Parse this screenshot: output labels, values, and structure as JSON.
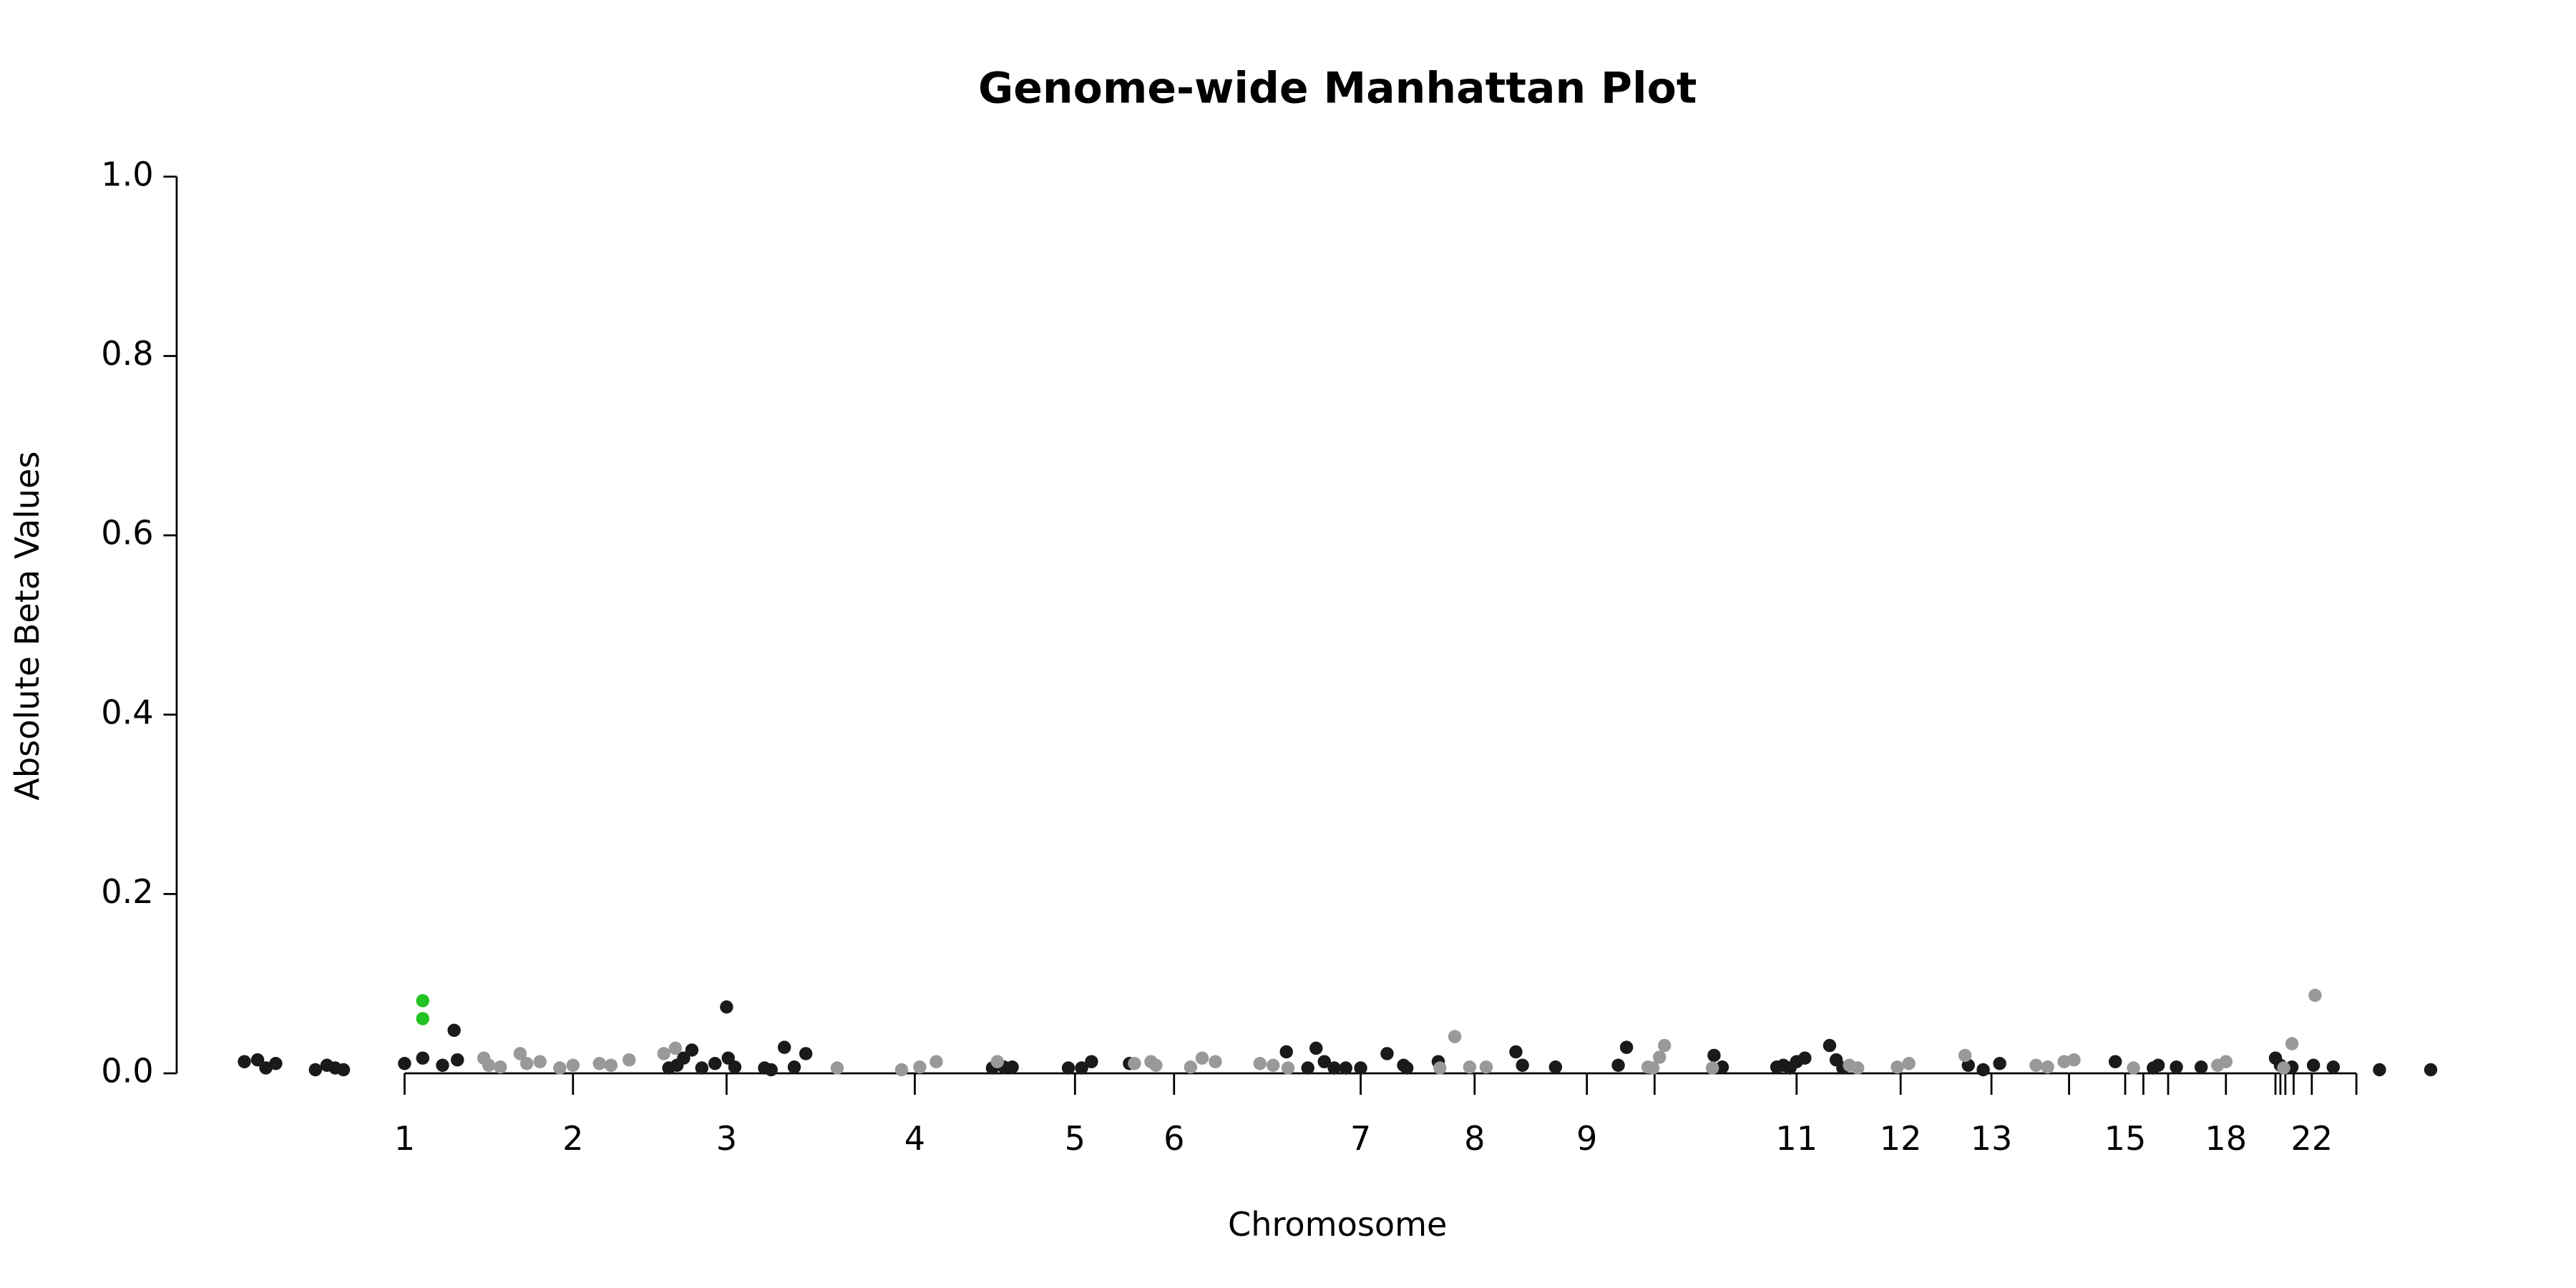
{
  "chart_data": {
    "type": "scatter",
    "title": "Genome-wide Manhattan Plot",
    "x_label": "Chromosome",
    "y_label": "Absolute Beta Values",
    "xlim": [
      0,
      1403
    ],
    "ylim": [
      0,
      1.0
    ],
    "yticks": [
      {
        "value": 0,
        "label": "0.0"
      },
      {
        "value": 0.2,
        "label": "0.2"
      },
      {
        "value": 0.4,
        "label": "0.4"
      },
      {
        "value": 0.6,
        "label": "0.6"
      },
      {
        "value": 0.8,
        "label": "0.8"
      },
      {
        "value": 1.0,
        "label": "1.0"
      }
    ],
    "xticks": [
      {
        "value": 138,
        "label": "1"
      },
      {
        "value": 240,
        "label": "2"
      },
      {
        "value": 333,
        "label": "3"
      },
      {
        "value": 447,
        "label": "4"
      },
      {
        "value": 544,
        "label": "5"
      },
      {
        "value": 604,
        "label": "6"
      },
      {
        "value": 717,
        "label": "7"
      },
      {
        "value": 786,
        "label": "8"
      },
      {
        "value": 854,
        "label": "9"
      },
      {
        "value": 895,
        "label": null
      },
      {
        "value": 981,
        "label": "11"
      },
      {
        "value": 1044,
        "label": "12"
      },
      {
        "value": 1099,
        "label": "13"
      },
      {
        "value": 1146,
        "label": null
      },
      {
        "value": 1180,
        "label": "15"
      },
      {
        "value": 1191,
        "label": null
      },
      {
        "value": 1206,
        "label": null
      },
      {
        "value": 1241,
        "label": "18"
      },
      {
        "value": 1271,
        "label": null
      },
      {
        "value": 1274,
        "label": null
      },
      {
        "value": 1277,
        "label": null
      },
      {
        "value": 1282,
        "label": null
      },
      {
        "value": 1293,
        "label": "22"
      },
      {
        "value": 1320,
        "label": null
      }
    ],
    "series": [
      {
        "color": "#1a1a1a",
        "x": [
          41,
          49,
          54,
          60,
          84,
          91,
          96,
          101,
          138,
          149,
          161,
          168,
          170,
          298,
          303,
          307,
          312,
          318,
          326,
          333,
          334,
          338,
          356,
          360,
          368,
          374,
          381,
          494,
          501,
          506,
          540,
          548,
          554,
          577,
          672,
          685,
          690,
          695,
          701,
          708,
          717,
          733,
          743,
          745,
          764,
          811,
          815,
          835,
          873,
          878,
          931,
          936,
          969,
          973,
          977,
          981,
          986,
          1001,
          1005,
          1009,
          1085,
          1094,
          1104,
          1174,
          1197,
          1200,
          1211,
          1226,
          1271,
          1274,
          1281,
          1294,
          1306,
          1334,
          1365
        ],
        "values": [
          0.013,
          0.015,
          0.006,
          0.011,
          0.004,
          0.009,
          0.006,
          0.004,
          0.011,
          0.017,
          0.009,
          0.048,
          0.015,
          0.006,
          0.009,
          0.017,
          0.026,
          0.006,
          0.011,
          0.074,
          0.017,
          0.007,
          0.006,
          0.004,
          0.029,
          0.007,
          0.022,
          0.006,
          0.007,
          0.007,
          0.006,
          0.006,
          0.013,
          0.011,
          0.024,
          0.006,
          0.028,
          0.013,
          0.006,
          0.006,
          0.006,
          0.022,
          0.009,
          0.006,
          0.013,
          0.024,
          0.009,
          0.007,
          0.009,
          0.029,
          0.02,
          0.007,
          0.007,
          0.009,
          0.006,
          0.013,
          0.017,
          0.031,
          0.015,
          0.006,
          0.009,
          0.004,
          0.011,
          0.013,
          0.006,
          0.009,
          0.007,
          0.007,
          0.017,
          0.009,
          0.007,
          0.009,
          0.007,
          0.004,
          0.004
        ]
      },
      {
        "color": "#999999",
        "x": [
          186,
          189,
          196,
          208,
          212,
          220,
          232,
          240,
          256,
          263,
          274,
          295,
          302,
          400,
          439,
          450,
          460,
          497,
          580,
          590,
          593,
          614,
          621,
          629,
          656,
          664,
          673,
          765,
          774,
          783,
          793,
          891,
          894,
          898,
          901,
          930,
          1013,
          1018,
          1042,
          1049,
          1083,
          1126,
          1133,
          1143,
          1149,
          1185,
          1236,
          1241,
          1276,
          1281,
          1295
        ],
        "values": [
          0.017,
          0.009,
          0.007,
          0.022,
          0.011,
          0.013,
          0.006,
          0.009,
          0.011,
          0.009,
          0.015,
          0.022,
          0.028,
          0.006,
          0.004,
          0.007,
          0.013,
          0.013,
          0.011,
          0.013,
          0.009,
          0.007,
          0.017,
          0.013,
          0.011,
          0.009,
          0.006,
          0.006,
          0.041,
          0.007,
          0.007,
          0.007,
          0.006,
          0.018,
          0.031,
          0.006,
          0.009,
          0.006,
          0.007,
          0.011,
          0.02,
          0.009,
          0.007,
          0.013,
          0.015,
          0.006,
          0.009,
          0.013,
          0.006,
          0.033,
          0.087
        ]
      },
      {
        "color": "#22c322",
        "x": [
          149,
          149
        ],
        "values": [
          0.081,
          0.061
        ]
      }
    ]
  }
}
